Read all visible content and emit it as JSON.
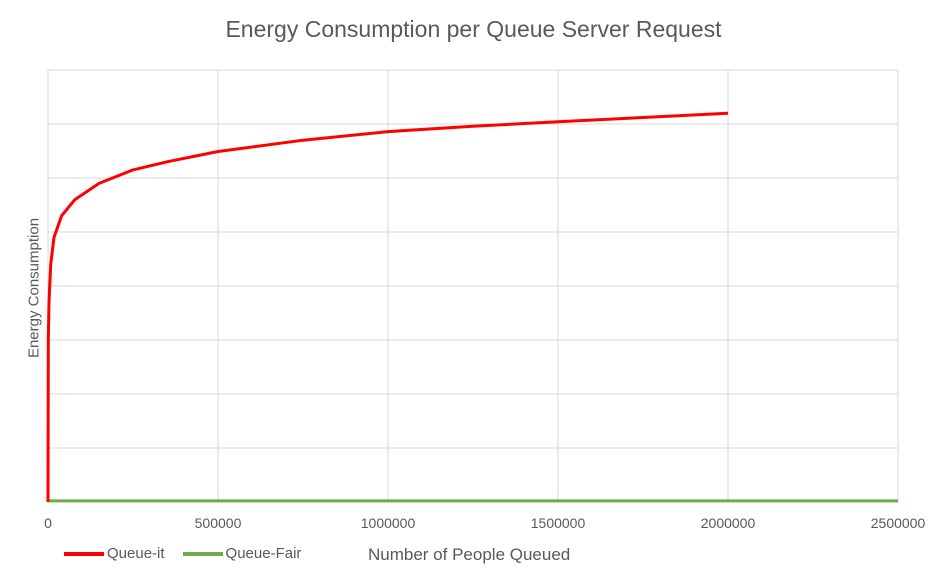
{
  "chart_data": {
    "type": "line",
    "title": "Energy Consumption per Queue Server Request",
    "xlabel": "Number of People Queued",
    "ylabel": "Energy Consumption",
    "xlim": [
      0,
      2500000
    ],
    "x_ticks": [
      "0",
      "500000",
      "1000000",
      "1500000",
      "2000000",
      "2500000"
    ],
    "y_gridlines": 8,
    "y_tick_labels_shown": false,
    "grid": true,
    "legend_position": "bottom-left",
    "series": [
      {
        "name": "Queue-it",
        "color": "#ff0000",
        "x": [
          0,
          1000,
          3000,
          8000,
          17600,
          40000,
          79000,
          150000,
          250000,
          350000,
          500000,
          750000,
          1000000,
          1250000,
          1500000,
          1750000,
          2000000
        ],
        "values": [
          0,
          3.0,
          3.7,
          4.4,
          4.9,
          5.3,
          5.6,
          5.9,
          6.15,
          6.3,
          6.49,
          6.7,
          6.86,
          6.96,
          7.04,
          7.12,
          7.2
        ]
      },
      {
        "name": "Queue-Fair",
        "color": "#70ad47",
        "x": [
          0,
          2500000
        ],
        "values": [
          0.02,
          0.02
        ]
      }
    ]
  },
  "title": "Energy Consumption per Queue Server Request",
  "axes": {
    "xlabel": "Number of People Queued",
    "ylabel": "Energy Consumption"
  },
  "legend": [
    {
      "label": "Queue-it",
      "color": "#ff0000"
    },
    {
      "label": "Queue-Fair",
      "color": "#70ad47"
    }
  ]
}
